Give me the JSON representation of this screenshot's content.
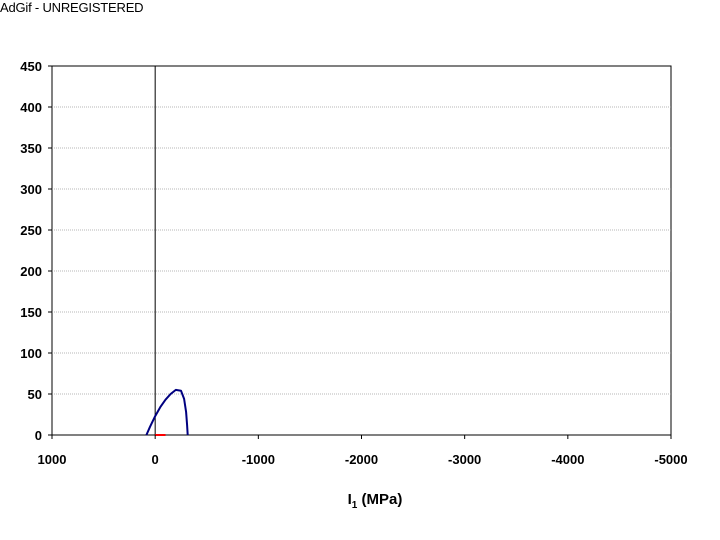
{
  "watermark": "AdGif - UNREGISTERED",
  "chart_data": {
    "type": "line",
    "title": "",
    "xlabel_main": "I",
    "xlabel_sub": "1",
    "xlabel_unit": " (MPa)",
    "ylabel": "",
    "xlim": [
      1000,
      -5000
    ],
    "ylim": [
      0,
      450
    ],
    "x_reversed": true,
    "x_ticks": [
      1000,
      0,
      -1000,
      -2000,
      -3000,
      -4000,
      -5000
    ],
    "x_tick_labels": [
      "1000",
      "0",
      "-1000",
      "-2000",
      "-3000",
      "-4000",
      "-5000"
    ],
    "y_ticks": [
      0,
      50,
      100,
      150,
      200,
      250,
      300,
      350,
      400,
      450
    ],
    "y_tick_labels": [
      "0",
      "50",
      "100",
      "150",
      "200",
      "250",
      "300",
      "350",
      "400",
      "450"
    ],
    "grid": {
      "horizontal": true,
      "vertical": false
    },
    "legend": "none",
    "series": [
      {
        "color": "#000080",
        "x": [
          85,
          50,
          0,
          -50,
          -100,
          -150,
          -200,
          -250,
          -280,
          -300,
          -310,
          -315
        ],
        "y": [
          0,
          10,
          23,
          34,
          43,
          50,
          55,
          54,
          44,
          28,
          12,
          0
        ]
      },
      {
        "color": "#ff0000",
        "x": [
          0,
          -100
        ],
        "y": [
          0,
          0
        ]
      }
    ]
  }
}
